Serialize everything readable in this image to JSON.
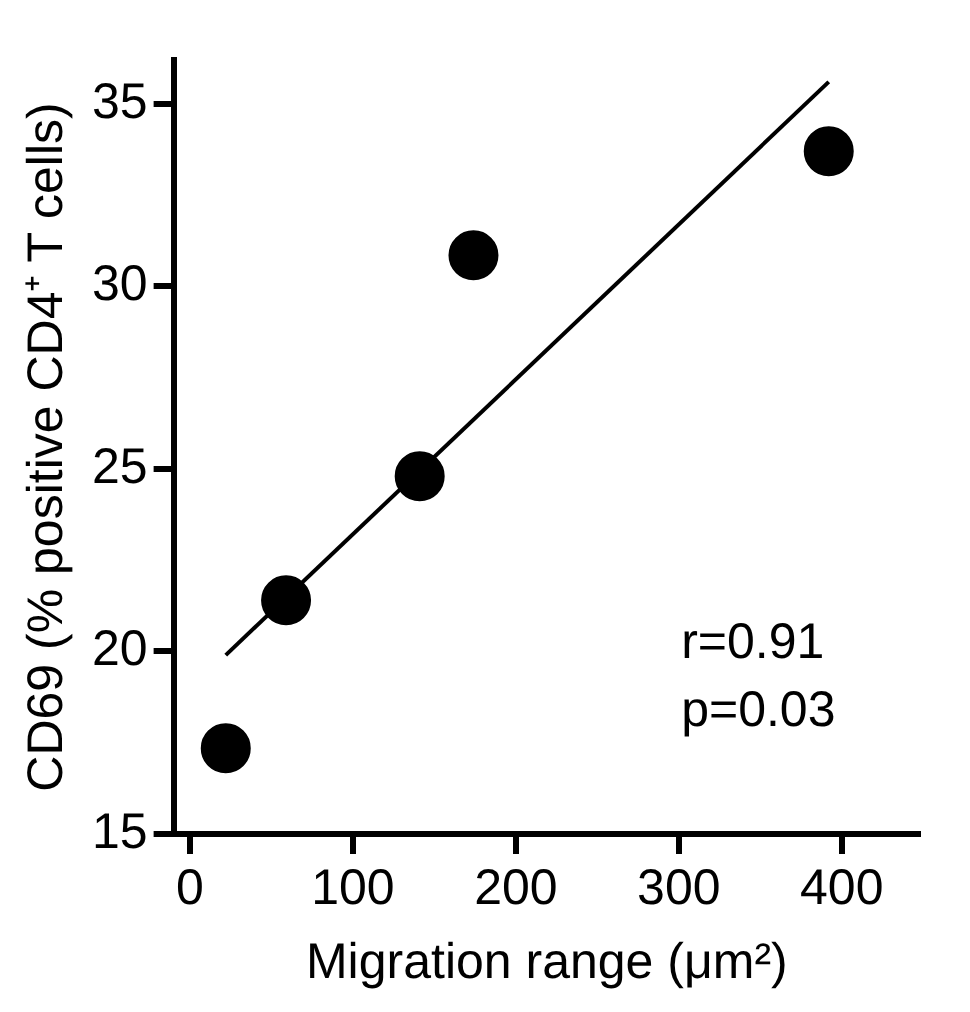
{
  "chart_data": {
    "type": "scatter",
    "xlabel": "Migration range (μm²)",
    "ylabel": "CD69 (% positive CD4⁺ T cells)",
    "xlim": [
      -10,
      448
    ],
    "ylim": [
      15,
      36.2
    ],
    "xticks": [
      0,
      100,
      200,
      300,
      400
    ],
    "yticks": [
      15,
      20,
      25,
      30,
      35
    ],
    "series": [
      {
        "color": "#000000",
        "marker": "circle",
        "x": [
          22,
          59,
          141,
          174,
          392
        ],
        "values": [
          17.35,
          21.4,
          24.8,
          30.85,
          33.7
        ]
      },
      {
        "type": "line",
        "color": "#000000",
        "marker": "none",
        "x": [
          22,
          392
        ],
        "values": [
          19.9,
          35.6
        ]
      }
    ],
    "grid": false,
    "legend": false,
    "annotations": [
      "r=0.91",
      "p=0.03"
    ]
  }
}
